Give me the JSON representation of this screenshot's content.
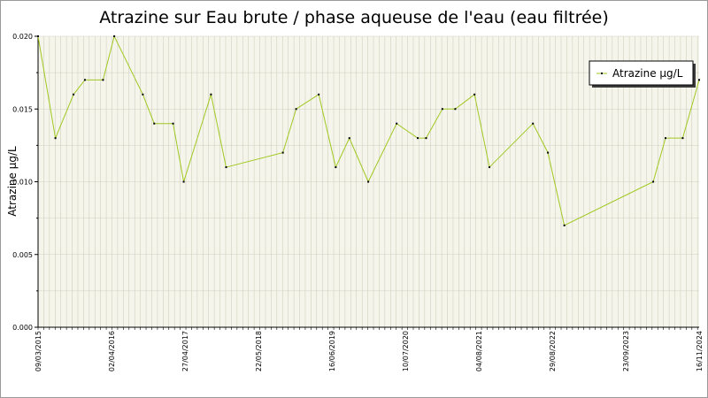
{
  "chart_data": {
    "type": "line",
    "title": "Atrazine sur Eau brute / phase aqueuse de l'eau (eau filtrée)",
    "ylabel": "Atrazine µg/L",
    "xlabel": "",
    "ylim": [
      0,
      0.02
    ],
    "y_ticks": [
      "0.000",
      "0.005",
      "0.010",
      "0.015",
      "0.020"
    ],
    "x_tick_labels": [
      "09/03/2015",
      "02/04/2016",
      "27/04/2017",
      "22/05/2018",
      "16/06/2019",
      "10/07/2020",
      "04/08/2021",
      "29/08/2022",
      "23/09/2023",
      "16/11/2024"
    ],
    "grid": true,
    "legend_position": "top-right",
    "line_color": "#a0c820",
    "marker_color": "#000000",
    "series": [
      {
        "name": "Atrazine µg/L",
        "points": [
          {
            "date": "2015-03-09",
            "value": 0.02
          },
          {
            "date": "2015-06-10",
            "value": 0.013
          },
          {
            "date": "2015-09-15",
            "value": 0.016
          },
          {
            "date": "2015-11-15",
            "value": 0.017
          },
          {
            "date": "2016-02-20",
            "value": 0.017
          },
          {
            "date": "2016-04-20",
            "value": 0.02
          },
          {
            "date": "2016-09-20",
            "value": 0.016
          },
          {
            "date": "2016-11-20",
            "value": 0.014
          },
          {
            "date": "2017-03-01",
            "value": 0.014
          },
          {
            "date": "2017-04-27",
            "value": 0.01
          },
          {
            "date": "2017-09-20",
            "value": 0.016
          },
          {
            "date": "2017-12-10",
            "value": 0.011
          },
          {
            "date": "2018-10-10",
            "value": 0.012
          },
          {
            "date": "2018-12-20",
            "value": 0.015
          },
          {
            "date": "2019-04-20",
            "value": 0.016
          },
          {
            "date": "2019-07-20",
            "value": 0.011
          },
          {
            "date": "2019-10-01",
            "value": 0.013
          },
          {
            "date": "2020-01-10",
            "value": 0.01
          },
          {
            "date": "2020-06-10",
            "value": 0.014
          },
          {
            "date": "2020-10-01",
            "value": 0.013
          },
          {
            "date": "2020-11-15",
            "value": 0.013
          },
          {
            "date": "2021-02-10",
            "value": 0.015
          },
          {
            "date": "2021-04-20",
            "value": 0.015
          },
          {
            "date": "2021-08-01",
            "value": 0.016
          },
          {
            "date": "2021-10-20",
            "value": 0.011
          },
          {
            "date": "2022-06-10",
            "value": 0.014
          },
          {
            "date": "2022-08-29",
            "value": 0.012
          },
          {
            "date": "2022-11-25",
            "value": 0.007
          },
          {
            "date": "2024-03-15",
            "value": 0.01
          },
          {
            "date": "2024-05-20",
            "value": 0.013
          },
          {
            "date": "2024-08-20",
            "value": 0.013
          },
          {
            "date": "2024-11-16",
            "value": 0.017
          }
        ]
      }
    ]
  }
}
